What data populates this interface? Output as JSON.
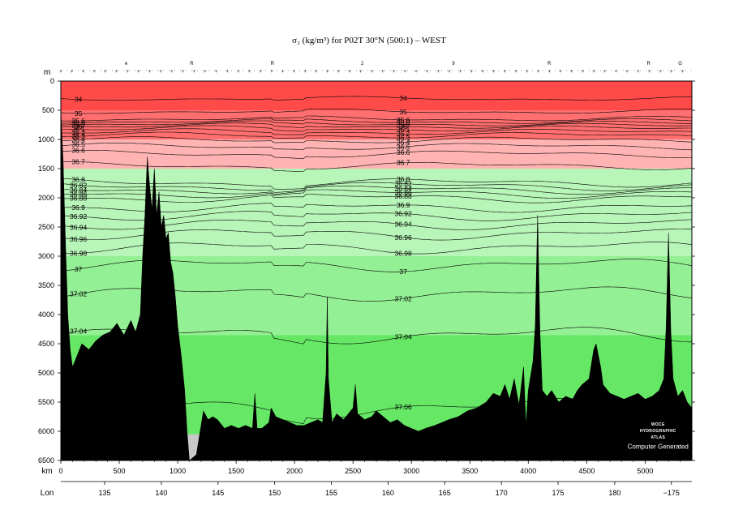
{
  "chart_data": {
    "type": "heatmap",
    "title": "σ₂ (kg/m³) for P02T 30°N (500:1) – WEST",
    "y_axis_label": "m",
    "x_axis_label": "km",
    "lon_axis_label": "Lon",
    "y_range_m": [
      0,
      6500
    ],
    "x_range_km": [
      0,
      5400
    ],
    "y_ticks": [
      0,
      500,
      1000,
      1500,
      2000,
      2500,
      3000,
      3500,
      4000,
      4500,
      5000,
      5500,
      6000,
      6500
    ],
    "x_ticks_km": [
      0,
      500,
      1000,
      1500,
      2000,
      2500,
      3000,
      3500,
      4000,
      4500,
      5000
    ],
    "lon_ticks": [
      {
        "label": "135",
        "km": 375
      },
      {
        "label": "140",
        "km": 860
      },
      {
        "label": "145",
        "km": 1345
      },
      {
        "label": "150",
        "km": 1830
      },
      {
        "label": "155",
        "km": 2315
      },
      {
        "label": "160",
        "km": 2800
      },
      {
        "label": "165",
        "km": 3285
      },
      {
        "label": "170",
        "km": 3770
      },
      {
        "label": "175",
        "km": 4255
      },
      {
        "label": "180",
        "km": 4740
      },
      {
        "label": "−175",
        "km": 5225
      }
    ],
    "station_labels": [
      {
        "label": "e",
        "km": 560
      },
      {
        "label": "R",
        "km": 1120
      },
      {
        "label": "R",
        "km": 1810
      },
      {
        "label": "2",
        "km": 2580
      },
      {
        "label": "9",
        "km": 3360
      },
      {
        "label": "R",
        "km": 4180
      },
      {
        "label": "R",
        "km": 5030
      },
      {
        "label": "G",
        "km": 5300
      }
    ],
    "color_bands": [
      {
        "depth_from": 0,
        "depth_to": 500,
        "color": "#ff4a4a"
      },
      {
        "depth_from": 500,
        "depth_to": 1000,
        "color": "#ff6f6f"
      },
      {
        "depth_from": 1000,
        "depth_to": 1500,
        "color": "#ffb3b3"
      },
      {
        "depth_from": 1500,
        "depth_to": 3000,
        "color": "#b8f5b8"
      },
      {
        "depth_from": 3000,
        "depth_to": 4350,
        "color": "#94f094"
      },
      {
        "depth_from": 4350,
        "depth_to": 6500,
        "color": "#66e866"
      }
    ],
    "isopycnals": [
      {
        "value": "34",
        "depth": 300
      },
      {
        "value": "35",
        "depth": 520
      },
      {
        "value": "35.6",
        "depth": 645
      },
      {
        "value": "35.8",
        "depth": 690
      },
      {
        "value": "35.9",
        "depth": 730
      },
      {
        "value": "36",
        "depth": 770
      },
      {
        "value": "36.1",
        "depth": 815
      },
      {
        "value": "36.2",
        "depth": 870
      },
      {
        "value": "36.3",
        "depth": 930
      },
      {
        "value": "36.4",
        "depth": 1010
      },
      {
        "value": "36.5",
        "depth": 1120
      },
      {
        "value": "36.6",
        "depth": 1250
      },
      {
        "value": "36.7",
        "depth": 1450
      },
      {
        "value": "36.8",
        "depth": 1740
      },
      {
        "value": "36.82",
        "depth": 1800
      },
      {
        "value": "36.84",
        "depth": 1860
      },
      {
        "value": "36.86",
        "depth": 1925
      },
      {
        "value": "36.88",
        "depth": 2000
      },
      {
        "value": "36.9",
        "depth": 2160
      },
      {
        "value": "36.92",
        "depth": 2300
      },
      {
        "value": "36.94",
        "depth": 2450
      },
      {
        "value": "36.96",
        "depth": 2620
      },
      {
        "value": "36.98",
        "depth": 2850
      },
      {
        "value": "37",
        "depth": 3150
      },
      {
        "value": "37.02",
        "depth": 3640
      },
      {
        "value": "37.04",
        "depth": 4350
      },
      {
        "value": "37.06",
        "depth": 5600
      }
    ],
    "bathymetry_km_depth": [
      [
        0,
        500
      ],
      [
        20,
        1400
      ],
      [
        40,
        2800
      ],
      [
        60,
        4000
      ],
      [
        80,
        4600
      ],
      [
        100,
        4900
      ],
      [
        140,
        4700
      ],
      [
        180,
        4500
      ],
      [
        240,
        4600
      ],
      [
        300,
        4450
      ],
      [
        360,
        4350
      ],
      [
        420,
        4300
      ],
      [
        480,
        4150
      ],
      [
        540,
        4350
      ],
      [
        600,
        4100
      ],
      [
        640,
        4300
      ],
      [
        680,
        4000
      ],
      [
        700,
        3000
      ],
      [
        720,
        2300
      ],
      [
        740,
        1300
      ],
      [
        760,
        1800
      ],
      [
        780,
        2200
      ],
      [
        800,
        1500
      ],
      [
        820,
        2300
      ],
      [
        840,
        1900
      ],
      [
        860,
        2500
      ],
      [
        880,
        2300
      ],
      [
        900,
        2700
      ],
      [
        920,
        2600
      ],
      [
        940,
        3100
      ],
      [
        960,
        3300
      ],
      [
        980,
        3700
      ],
      [
        1000,
        4200
      ],
      [
        1030,
        4700
      ],
      [
        1060,
        5300
      ],
      [
        1080,
        6000
      ],
      [
        1100,
        6500
      ],
      [
        1160,
        6400
      ],
      [
        1180,
        6150
      ],
      [
        1200,
        5900
      ],
      [
        1220,
        5650
      ],
      [
        1260,
        5800
      ],
      [
        1300,
        5750
      ],
      [
        1340,
        5800
      ],
      [
        1400,
        5950
      ],
      [
        1460,
        5900
      ],
      [
        1520,
        5950
      ],
      [
        1580,
        5900
      ],
      [
        1640,
        5950
      ],
      [
        1660,
        5350
      ],
      [
        1680,
        5950
      ],
      [
        1720,
        5950
      ],
      [
        1780,
        5850
      ],
      [
        1800,
        5600
      ],
      [
        1840,
        5750
      ],
      [
        1900,
        5800
      ],
      [
        1960,
        5850
      ],
      [
        2020,
        5900
      ],
      [
        2080,
        5900
      ],
      [
        2140,
        5850
      ],
      [
        2200,
        5800
      ],
      [
        2240,
        5850
      ],
      [
        2270,
        5000
      ],
      [
        2280,
        3700
      ],
      [
        2290,
        5100
      ],
      [
        2320,
        5850
      ],
      [
        2360,
        5700
      ],
      [
        2420,
        5800
      ],
      [
        2460,
        5700
      ],
      [
        2500,
        5600
      ],
      [
        2520,
        5200
      ],
      [
        2540,
        5700
      ],
      [
        2600,
        5800
      ],
      [
        2660,
        5750
      ],
      [
        2700,
        5650
      ],
      [
        2760,
        5750
      ],
      [
        2820,
        5850
      ],
      [
        2880,
        5800
      ],
      [
        2940,
        5900
      ],
      [
        3000,
        5950
      ],
      [
        3060,
        6000
      ],
      [
        3120,
        5950
      ],
      [
        3200,
        5900
      ],
      [
        3260,
        5850
      ],
      [
        3320,
        5800
      ],
      [
        3400,
        5750
      ],
      [
        3480,
        5650
      ],
      [
        3560,
        5600
      ],
      [
        3640,
        5500
      ],
      [
        3700,
        5350
      ],
      [
        3760,
        5400
      ],
      [
        3800,
        5200
      ],
      [
        3840,
        5450
      ],
      [
        3880,
        5100
      ],
      [
        3920,
        5550
      ],
      [
        3960,
        4900
      ],
      [
        3980,
        5900
      ],
      [
        4000,
        5300
      ],
      [
        4040,
        4800
      ],
      [
        4060,
        4200
      ],
      [
        4080,
        2300
      ],
      [
        4100,
        4300
      ],
      [
        4120,
        5300
      ],
      [
        4160,
        5400
      ],
      [
        4200,
        5300
      ],
      [
        4260,
        5500
      ],
      [
        4320,
        5400
      ],
      [
        4380,
        5450
      ],
      [
        4420,
        5300
      ],
      [
        4460,
        5200
      ],
      [
        4520,
        5100
      ],
      [
        4560,
        4600
      ],
      [
        4580,
        4500
      ],
      [
        4600,
        4700
      ],
      [
        4620,
        4900
      ],
      [
        4640,
        5200
      ],
      [
        4700,
        5350
      ],
      [
        4760,
        5400
      ],
      [
        4820,
        5450
      ],
      [
        4880,
        5400
      ],
      [
        4940,
        5350
      ],
      [
        5000,
        5450
      ],
      [
        5060,
        5400
      ],
      [
        5120,
        5300
      ],
      [
        5160,
        5100
      ],
      [
        5180,
        4200
      ],
      [
        5200,
        2600
      ],
      [
        5220,
        4300
      ],
      [
        5240,
        5100
      ],
      [
        5280,
        5400
      ],
      [
        5320,
        5300
      ],
      [
        5360,
        5500
      ],
      [
        5400,
        5600
      ]
    ],
    "logo_text": [
      "WOCE",
      "HYDROGRAPHIC",
      "ATLAS"
    ],
    "watermark": "Computer Generated"
  }
}
